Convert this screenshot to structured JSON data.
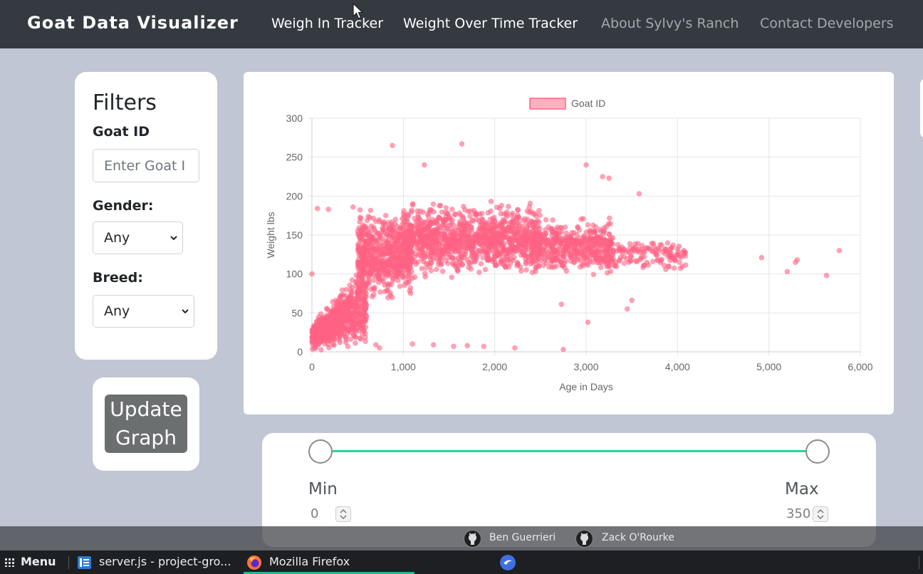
{
  "navbar": {
    "brand": "Goat Data Visualizer",
    "links": [
      {
        "label": "Weigh In Tracker",
        "active": true
      },
      {
        "label": "Weight Over Time Tracker",
        "active": true
      },
      {
        "label": "About Sylvy's Ranch",
        "active": false
      },
      {
        "label": "Contact Developers",
        "active": false
      }
    ]
  },
  "filters": {
    "title": "Filters",
    "goat_id_label": "Goat ID",
    "goat_id_placeholder": "Enter Goat I",
    "gender_label": "Gender:",
    "gender_value": "Any",
    "breed_label": "Breed:",
    "breed_value": "Any"
  },
  "update_button": {
    "line1": "Update",
    "line2": "Graph"
  },
  "chart_data": {
    "type": "scatter",
    "legend": "Goat ID",
    "legend_position": "top",
    "xlabel": "Age in Days",
    "ylabel": "Weight lbs",
    "xlim": [
      0,
      6000
    ],
    "ylim": [
      0,
      300
    ],
    "x_ticks": [
      "0",
      "1,000",
      "2,000",
      "3,000",
      "4,000",
      "5,000",
      "6,000"
    ],
    "y_ticks": [
      "0",
      "50",
      "100",
      "150",
      "200",
      "250",
      "300"
    ],
    "grid": true,
    "color": "#ff6384",
    "clusters": [
      {
        "x_range": [
          0,
          600
        ],
        "y_range": [
          0,
          130
        ],
        "count": 700
      },
      {
        "x_range": [
          500,
          1100
        ],
        "y_range": [
          60,
          190
        ],
        "count": 650
      },
      {
        "x_range": [
          1000,
          2500
        ],
        "y_range": [
          90,
          200
        ],
        "count": 1100
      },
      {
        "x_range": [
          2400,
          3300
        ],
        "y_range": [
          95,
          175
        ],
        "count": 500
      },
      {
        "x_range": [
          3200,
          4100
        ],
        "y_range": [
          100,
          150
        ],
        "count": 140
      }
    ],
    "points": [
      {
        "x": 4920,
        "y": 121
      },
      {
        "x": 5200,
        "y": 103
      },
      {
        "x": 5290,
        "y": 115
      },
      {
        "x": 5310,
        "y": 118
      },
      {
        "x": 5630,
        "y": 98
      },
      {
        "x": 5770,
        "y": 130
      },
      {
        "x": 880,
        "y": 265
      },
      {
        "x": 1640,
        "y": 267
      },
      {
        "x": 1230,
        "y": 240
      },
      {
        "x": 3000,
        "y": 240
      },
      {
        "x": 3180,
        "y": 225
      },
      {
        "x": 3250,
        "y": 223
      },
      {
        "x": 3580,
        "y": 203
      },
      {
        "x": 2750,
        "y": 3
      },
      {
        "x": 2220,
        "y": 5
      },
      {
        "x": 3020,
        "y": 38
      },
      {
        "x": 2730,
        "y": 61
      },
      {
        "x": 3450,
        "y": 55
      },
      {
        "x": 60,
        "y": 184
      },
      {
        "x": 180,
        "y": 183
      },
      {
        "x": 450,
        "y": 186
      },
      {
        "x": 0,
        "y": 100
      },
      {
        "x": 3500,
        "y": 66
      },
      {
        "x": 1700,
        "y": 8
      },
      {
        "x": 1880,
        "y": 7
      },
      {
        "x": 1550,
        "y": 7
      },
      {
        "x": 700,
        "y": 9
      },
      {
        "x": 740,
        "y": 5
      },
      {
        "x": 1100,
        "y": 10
      },
      {
        "x": 1330,
        "y": 9
      }
    ]
  },
  "range_slider": {
    "min_label": "Min",
    "max_label": "Max",
    "min_value": "0",
    "max_value": "350",
    "accent": "#28d596"
  },
  "footer": {
    "authors": [
      "Ben Guerrieri",
      "Zack O'Rourke"
    ]
  },
  "taskbar": {
    "menu_label": "Menu",
    "items": [
      "server.js - project-gro...",
      "Mozilla Firefox"
    ]
  }
}
